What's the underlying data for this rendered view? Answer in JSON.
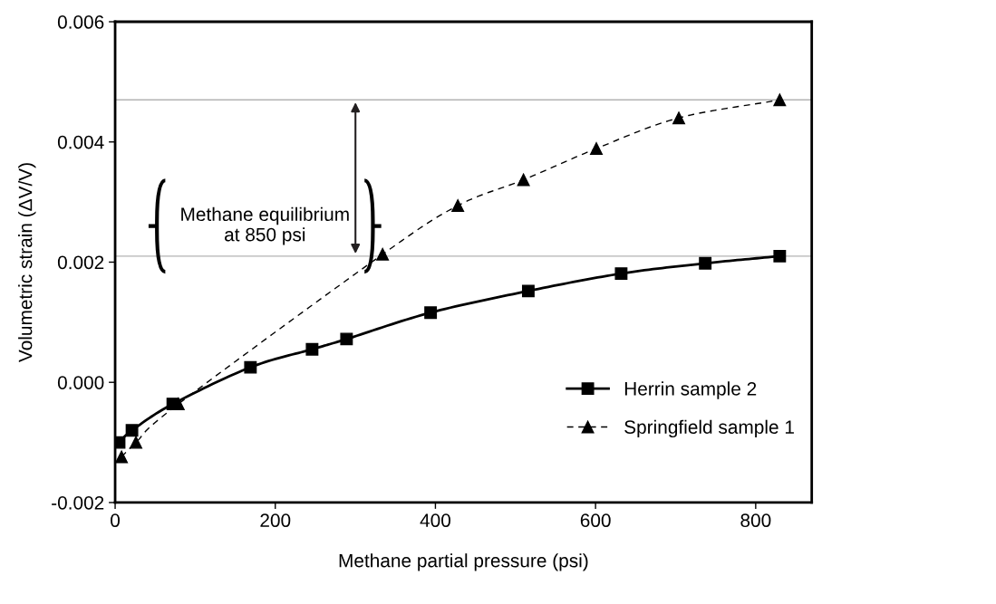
{
  "chart_data": {
    "type": "line",
    "xlabel": "Methane partial pressure (psi)",
    "ylabel": "Volumetric strain (ΔV/V)",
    "xlim": [
      0,
      870
    ],
    "xticks": [
      0,
      200,
      400,
      600,
      800
    ],
    "ylim": [
      -0.002,
      0.006
    ],
    "yticks": [
      {
        "value": -0.002,
        "label": "-0.002"
      },
      {
        "value": 0.0,
        "label": "0.000"
      },
      {
        "value": 0.002,
        "label": "0.002"
      },
      {
        "value": 0.004,
        "label": "0.004"
      },
      {
        "value": 0.006,
        "label": "0.006"
      }
    ],
    "grid": false,
    "legend": "bottom right",
    "series": [
      {
        "name": "Herrin sample 2",
        "color": "#000000",
        "marker": "square",
        "line_style": "solid",
        "x": [
          5,
          21,
          72,
          169,
          246,
          289,
          394,
          516,
          632,
          737,
          830
        ],
        "values": [
          -0.001,
          -0.0008,
          -0.00036,
          0.00025,
          0.00055,
          0.00072,
          0.00116,
          0.00152,
          0.00181,
          0.00198,
          0.0021
        ]
      },
      {
        "name": "Springfield sample 1",
        "color": "#000000",
        "marker": "triangle",
        "line_style": "dashed",
        "x": [
          8,
          26,
          79,
          334,
          428,
          510,
          601,
          704,
          830
        ],
        "values": [
          -0.00124,
          -0.001,
          -0.00036,
          0.00213,
          0.00294,
          0.00337,
          0.00389,
          0.0044,
          0.0047
        ]
      }
    ],
    "ref_lines": [
      {
        "axis": "y",
        "value": 0.0047,
        "color": "#b3b3b3"
      },
      {
        "axis": "y",
        "value": 0.0021,
        "color": "#b3b3b3"
      }
    ],
    "annotations": [
      "Methane equilibrium\nat 850 psi"
    ]
  }
}
